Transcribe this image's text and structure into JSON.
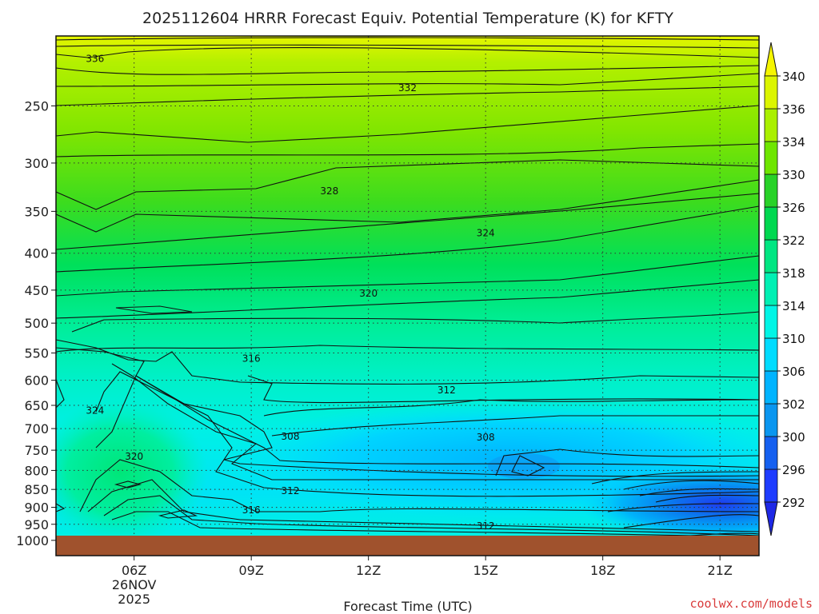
{
  "colors": {
    "surface": "#a0522d",
    "contour": "#111111",
    "credit": "#d93b3b"
  },
  "chart_data": {
    "type": "heatmap",
    "title": "2025112604 HRRR Forecast Equiv. Potential Temperature (K) for KFTY",
    "xlabel": "Forecast Time (UTC)",
    "ylabel": "",
    "x_range_hours": [
      4,
      22
    ],
    "y_range_hpa": [
      1050,
      200
    ],
    "x_ticks": [
      {
        "hour": 6,
        "label": "06Z",
        "sub1": "26NOV",
        "sub2": "2025"
      },
      {
        "hour": 9,
        "label": "09Z",
        "sub1": "",
        "sub2": ""
      },
      {
        "hour": 12,
        "label": "12Z",
        "sub1": "",
        "sub2": ""
      },
      {
        "hour": 15,
        "label": "15Z",
        "sub1": "",
        "sub2": ""
      },
      {
        "hour": 18,
        "label": "18Z",
        "sub1": "",
        "sub2": ""
      },
      {
        "hour": 21,
        "label": "21Z",
        "sub1": "",
        "sub2": ""
      }
    ],
    "y_ticks": [
      {
        "p": 250,
        "label": "250"
      },
      {
        "p": 300,
        "label": "300"
      },
      {
        "p": 350,
        "label": "350"
      },
      {
        "p": 400,
        "label": "400"
      },
      {
        "p": 450,
        "label": "450"
      },
      {
        "p": 500,
        "label": "500"
      },
      {
        "p": 550,
        "label": "550"
      },
      {
        "p": 600,
        "label": "600"
      },
      {
        "p": 650,
        "label": "650"
      },
      {
        "p": 700,
        "label": "700"
      },
      {
        "p": 750,
        "label": "750"
      },
      {
        "p": 800,
        "label": "800"
      },
      {
        "p": 850,
        "label": "850"
      },
      {
        "p": 900,
        "label": "900"
      },
      {
        "p": 950,
        "label": "950"
      },
      {
        "p": 1000,
        "label": "1000"
      }
    ],
    "surface_pressure_hpa": 980,
    "colorbar": {
      "levels": [
        292,
        296,
        300,
        302,
        306,
        310,
        314,
        318,
        322,
        326,
        330,
        334,
        336,
        340
      ],
      "labels": [
        "292",
        "296",
        "300",
        "302",
        "306",
        "310",
        "314",
        "318",
        "322",
        "326",
        "330",
        "334",
        "336",
        "340"
      ],
      "colors": [
        "#1e3cff",
        "#1560f0",
        "#0a96f0",
        "#00b4ff",
        "#00dcff",
        "#00f5e6",
        "#00f0b4",
        "#00e682",
        "#00d850",
        "#28d228",
        "#6ee600",
        "#aaf000",
        "#dcf500",
        "#f5f500"
      ],
      "extend_low": "#1e28e6",
      "extend_high": "#f5f500"
    },
    "contour_labels": [
      {
        "text": "336",
        "hour": 5.0,
        "p": 215
      },
      {
        "text": "332",
        "hour": 13.0,
        "p": 236
      },
      {
        "text": "328",
        "hour": 11.0,
        "p": 328
      },
      {
        "text": "324",
        "hour": 15.0,
        "p": 375
      },
      {
        "text": "320",
        "hour": 12.0,
        "p": 455
      },
      {
        "text": "316",
        "hour": 9.0,
        "p": 560
      },
      {
        "text": "312",
        "hour": 14.0,
        "p": 619
      },
      {
        "text": "324",
        "hour": 5.0,
        "p": 661
      },
      {
        "text": "308",
        "hour": 10.0,
        "p": 718
      },
      {
        "text": "308",
        "hour": 15.0,
        "p": 720
      },
      {
        "text": "320",
        "hour": 6.0,
        "p": 765
      },
      {
        "text": "312",
        "hour": 10.0,
        "p": 854
      },
      {
        "text": "316",
        "hour": 9.0,
        "p": 908
      },
      {
        "text": "312",
        "hour": 15.0,
        "p": 955
      }
    ]
  },
  "credit": "coolwx.com/models"
}
